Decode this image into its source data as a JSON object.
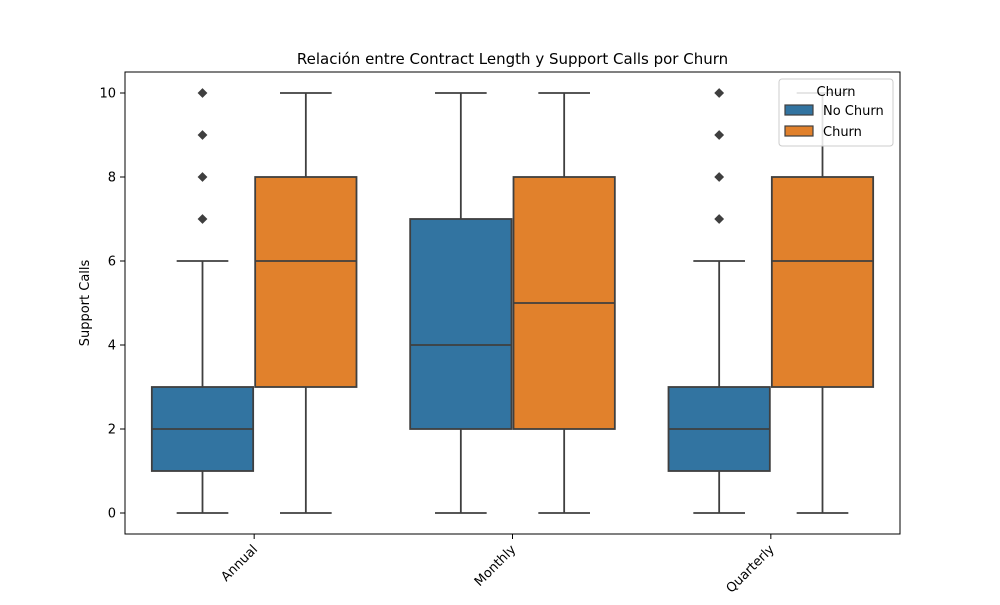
{
  "chart_data": {
    "type": "box",
    "title": "Relación entre Contract Length y Support Calls por Churn",
    "xlabel": "",
    "ylabel": "Support Calls",
    "ylim": [
      -0.5,
      10.5
    ],
    "yticks": [
      0,
      2,
      4,
      6,
      8,
      10
    ],
    "grid": false,
    "legend": {
      "title": "Churn",
      "placement": "top-right"
    },
    "categories": [
      "Annual",
      "Monthly",
      "Quarterly"
    ],
    "series": [
      {
        "name": "No Churn",
        "color": "#3274a1",
        "boxes": [
          {
            "category": "Annual",
            "whisker_low": 0,
            "q1": 1,
            "median": 2,
            "q3": 3,
            "whisker_high": 6,
            "outliers": [
              7,
              8,
              9,
              10
            ]
          },
          {
            "category": "Monthly",
            "whisker_low": 0,
            "q1": 2,
            "median": 4,
            "q3": 7,
            "whisker_high": 10,
            "outliers": []
          },
          {
            "category": "Quarterly",
            "whisker_low": 0,
            "q1": 1,
            "median": 2,
            "q3": 3,
            "whisker_high": 6,
            "outliers": [
              7,
              8,
              9,
              10
            ]
          }
        ]
      },
      {
        "name": "Churn",
        "color": "#e1812c",
        "boxes": [
          {
            "category": "Annual",
            "whisker_low": 0,
            "q1": 3,
            "median": 6,
            "q3": 8,
            "whisker_high": 10,
            "outliers": []
          },
          {
            "category": "Monthly",
            "whisker_low": 0,
            "q1": 2,
            "median": 5,
            "q3": 8,
            "whisker_high": 10,
            "outliers": []
          },
          {
            "category": "Quarterly",
            "whisker_low": 0,
            "q1": 3,
            "median": 6,
            "q3": 8,
            "whisker_high": 10,
            "outliers": []
          }
        ]
      }
    ]
  }
}
